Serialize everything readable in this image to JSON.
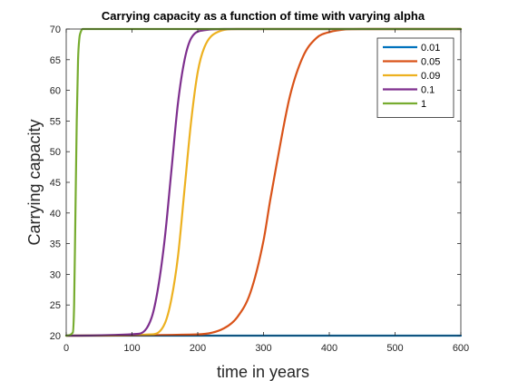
{
  "chart_data": {
    "type": "line",
    "title": "Carrying capacity as a function of time with varying alpha",
    "xlabel": "time in years",
    "ylabel": "Carrying capacity",
    "xlim": [
      0,
      600
    ],
    "ylim": [
      20,
      70
    ],
    "xticks": [
      0,
      100,
      200,
      300,
      400,
      500,
      600
    ],
    "yticks": [
      20,
      25,
      30,
      35,
      40,
      45,
      50,
      55,
      60,
      65,
      70
    ],
    "grid": false,
    "legend_position": "top-right",
    "series": [
      {
        "name": "0.01",
        "color": "#0072BD",
        "x": [
          0,
          100,
          200,
          300,
          400,
          500,
          600
        ],
        "y": [
          20,
          20,
          20,
          20,
          20,
          20,
          20
        ]
      },
      {
        "name": "0.05",
        "color": "#D95319",
        "x": [
          0,
          200,
          240,
          260,
          280,
          300,
          310,
          320,
          340,
          360,
          380,
          400,
          450,
          600
        ],
        "y": [
          20,
          20.2,
          21.2,
          23,
          27,
          35.5,
          42,
          48,
          59,
          65.5,
          68.5,
          69.5,
          70,
          70
        ]
      },
      {
        "name": "0.09",
        "color": "#EDB120",
        "x": [
          0,
          130,
          150,
          160,
          170,
          180,
          190,
          200,
          210,
          230,
          260,
          600
        ],
        "y": [
          20,
          20.2,
          22,
          26,
          33,
          44,
          55,
          63,
          67,
          69.5,
          70,
          70
        ]
      },
      {
        "name": "0.1",
        "color": "#7E2F8E",
        "x": [
          0,
          110,
          130,
          140,
          150,
          160,
          170,
          180,
          190,
          210,
          240,
          600
        ],
        "y": [
          20,
          20.3,
          23,
          28,
          36,
          47,
          58,
          65,
          68.5,
          69.8,
          70,
          70
        ]
      },
      {
        "name": "1",
        "color": "#77AC30",
        "x": [
          0,
          10,
          12,
          14,
          16,
          18,
          20,
          22,
          25,
          600
        ],
        "y": [
          20,
          20.5,
          25,
          40,
          55,
          65,
          68.5,
          69.5,
          70,
          70
        ]
      }
    ]
  }
}
